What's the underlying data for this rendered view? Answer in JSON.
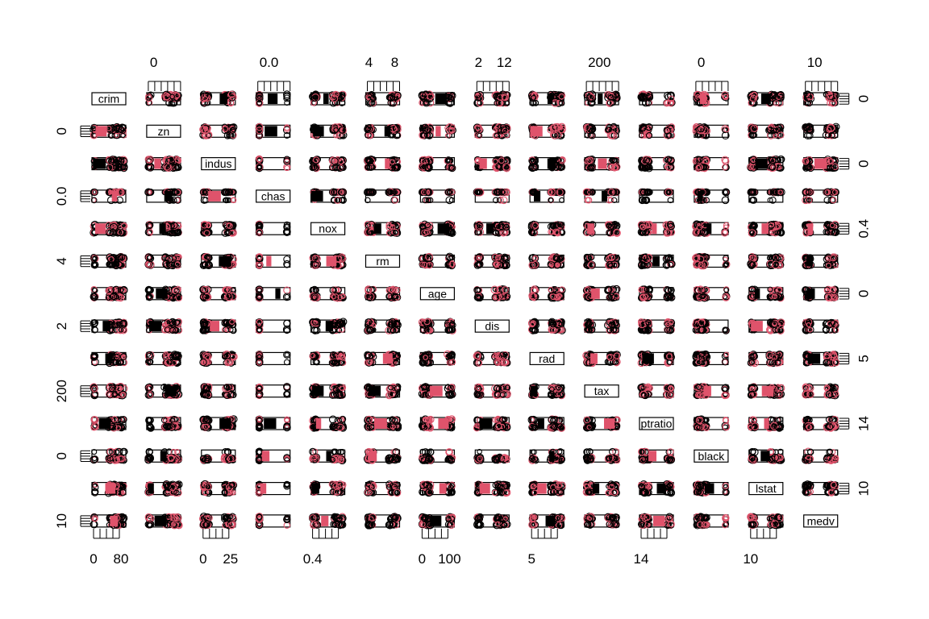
{
  "chart_data": {
    "type": "scatter",
    "variables": [
      "crim",
      "zn",
      "indus",
      "chas",
      "nox",
      "rm",
      "age",
      "dis",
      "rad",
      "tax",
      "ptratio",
      "black",
      "lstat",
      "medv"
    ],
    "top_axis_labels": [
      {
        "col": 1,
        "labels": [
          "0"
        ]
      },
      {
        "col": 3,
        "labels": [
          "0.0"
        ]
      },
      {
        "col": 5,
        "labels": [
          "4",
          "8"
        ]
      },
      {
        "col": 7,
        "labels": [
          "2",
          "12"
        ]
      },
      {
        "col": 9,
        "labels": [
          "200"
        ]
      },
      {
        "col": 11,
        "labels": [
          "0"
        ]
      },
      {
        "col": 13,
        "labels": [
          "10"
        ]
      }
    ],
    "bottom_axis_labels": [
      {
        "col": 0,
        "labels": [
          "0",
          "80"
        ]
      },
      {
        "col": 2,
        "labels": [
          "0",
          "25"
        ]
      },
      {
        "col": 4,
        "labels": [
          "0.4"
        ]
      },
      {
        "col": 6,
        "labels": [
          "0",
          "100"
        ]
      },
      {
        "col": 8,
        "labels": [
          "5"
        ]
      },
      {
        "col": 10,
        "labels": [
          "14"
        ]
      },
      {
        "col": 12,
        "labels": [
          "10"
        ]
      }
    ],
    "left_axis_labels": [
      {
        "row": 1,
        "labels": [
          "0"
        ]
      },
      {
        "row": 3,
        "labels": [
          "0.0"
        ]
      },
      {
        "row": 5,
        "labels": [
          "4"
        ]
      },
      {
        "row": 7,
        "labels": [
          "2"
        ]
      },
      {
        "row": 9,
        "labels": [
          "200"
        ]
      },
      {
        "row": 11,
        "labels": [
          "0"
        ]
      },
      {
        "row": 13,
        "labels": [
          "10"
        ]
      }
    ],
    "right_axis_labels": [
      {
        "row": 0,
        "labels": [
          "0"
        ]
      },
      {
        "row": 2,
        "labels": [
          "0"
        ]
      },
      {
        "row": 4,
        "labels": [
          "0.4"
        ]
      },
      {
        "row": 6,
        "labels": [
          "0"
        ]
      },
      {
        "row": 8,
        "labels": [
          "5"
        ]
      },
      {
        "row": 10,
        "labels": [
          "14"
        ]
      },
      {
        "row": 12,
        "labels": [
          "10"
        ]
      }
    ],
    "groups": [
      {
        "color": "#000000"
      },
      {
        "color": "#DF536B"
      }
    ],
    "grid": false,
    "legend": "none"
  }
}
